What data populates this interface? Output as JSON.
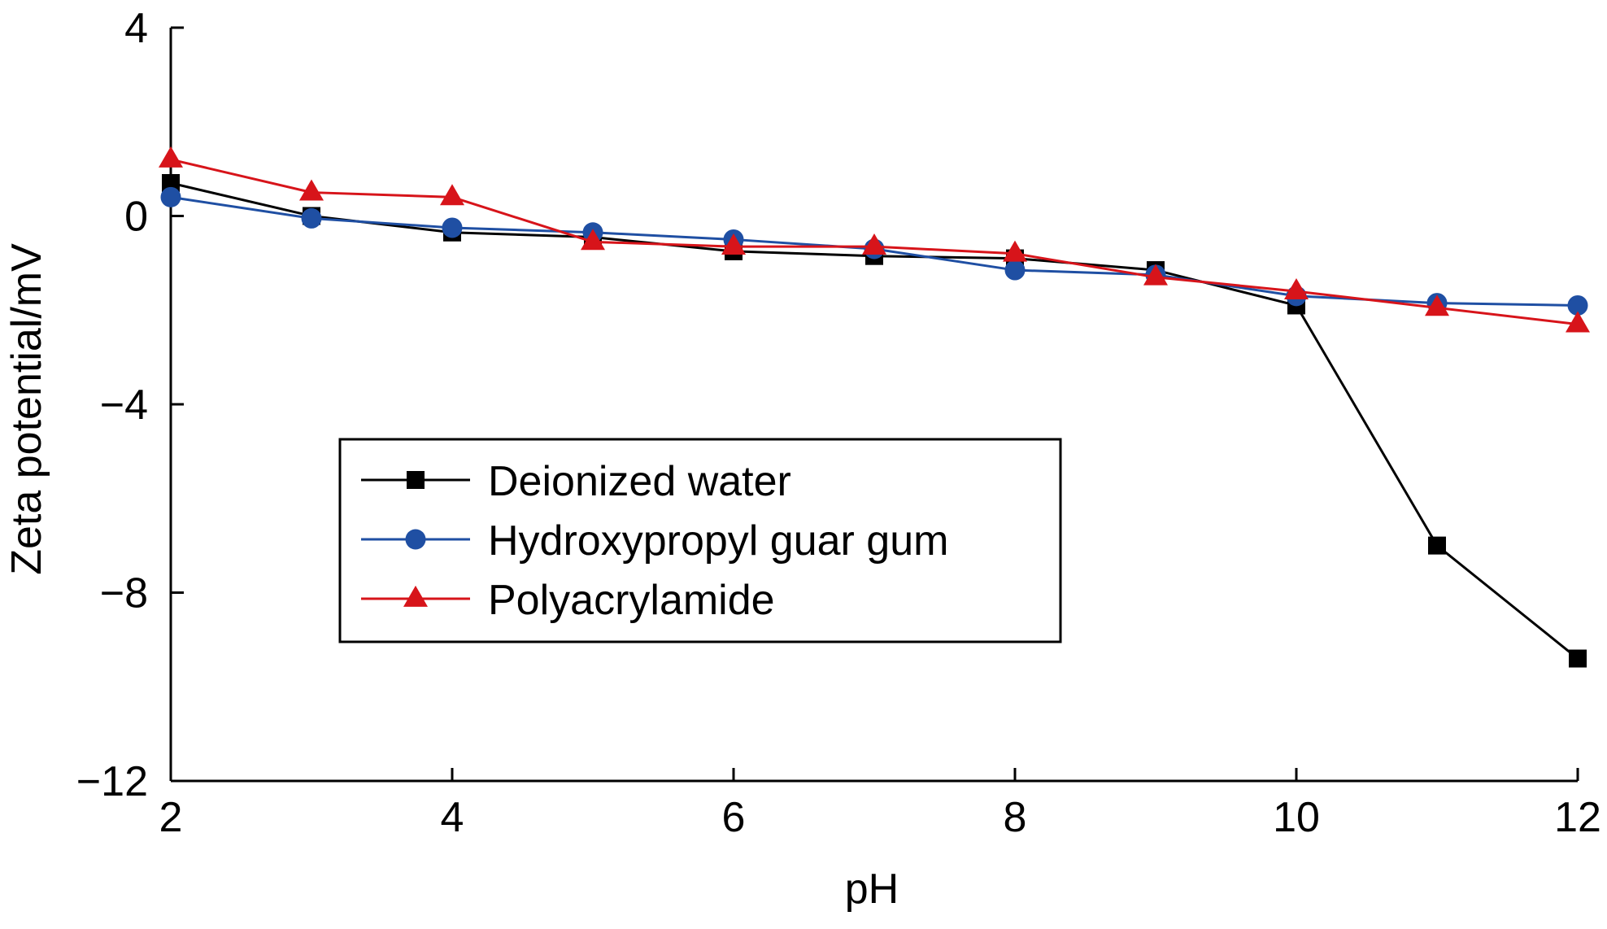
{
  "chart_data": {
    "type": "line",
    "title": "",
    "xlabel": "pH",
    "ylabel": "Zeta potential/mV",
    "xlim": [
      2,
      12
    ],
    "ylim": [
      -12,
      4
    ],
    "xticks": [
      2,
      4,
      6,
      8,
      10,
      12
    ],
    "xtick_labels": [
      "2",
      "4",
      "6",
      "8",
      "10",
      "12"
    ],
    "yticks": [
      -12,
      -8,
      -4,
      0,
      4
    ],
    "ytick_labels": [
      "−12",
      "−8",
      "−4",
      "0",
      "4"
    ],
    "grid": false,
    "legend_position": "lower-left-center",
    "x": [
      2,
      3,
      4,
      5,
      6,
      7,
      8,
      9,
      10,
      11,
      12
    ],
    "series": [
      {
        "name": "Deionized water",
        "color": "#000000",
        "marker": "square",
        "values": [
          0.7,
          0.0,
          -0.35,
          -0.45,
          -0.75,
          -0.85,
          -0.9,
          -1.15,
          -1.9,
          -7.0,
          -9.4
        ]
      },
      {
        "name": "Hydroxypropyl guar gum",
        "color": "#1f4fa3",
        "marker": "circle",
        "values": [
          0.4,
          -0.05,
          -0.25,
          -0.35,
          -0.5,
          -0.7,
          -1.15,
          -1.25,
          -1.7,
          -1.85,
          -1.9
        ]
      },
      {
        "name": "Polyacrylamide",
        "color": "#d7141a",
        "marker": "triangle",
        "values": [
          1.2,
          0.5,
          0.4,
          -0.55,
          -0.65,
          -0.65,
          -0.8,
          -1.3,
          -1.6,
          -1.95,
          -2.3
        ]
      }
    ]
  }
}
